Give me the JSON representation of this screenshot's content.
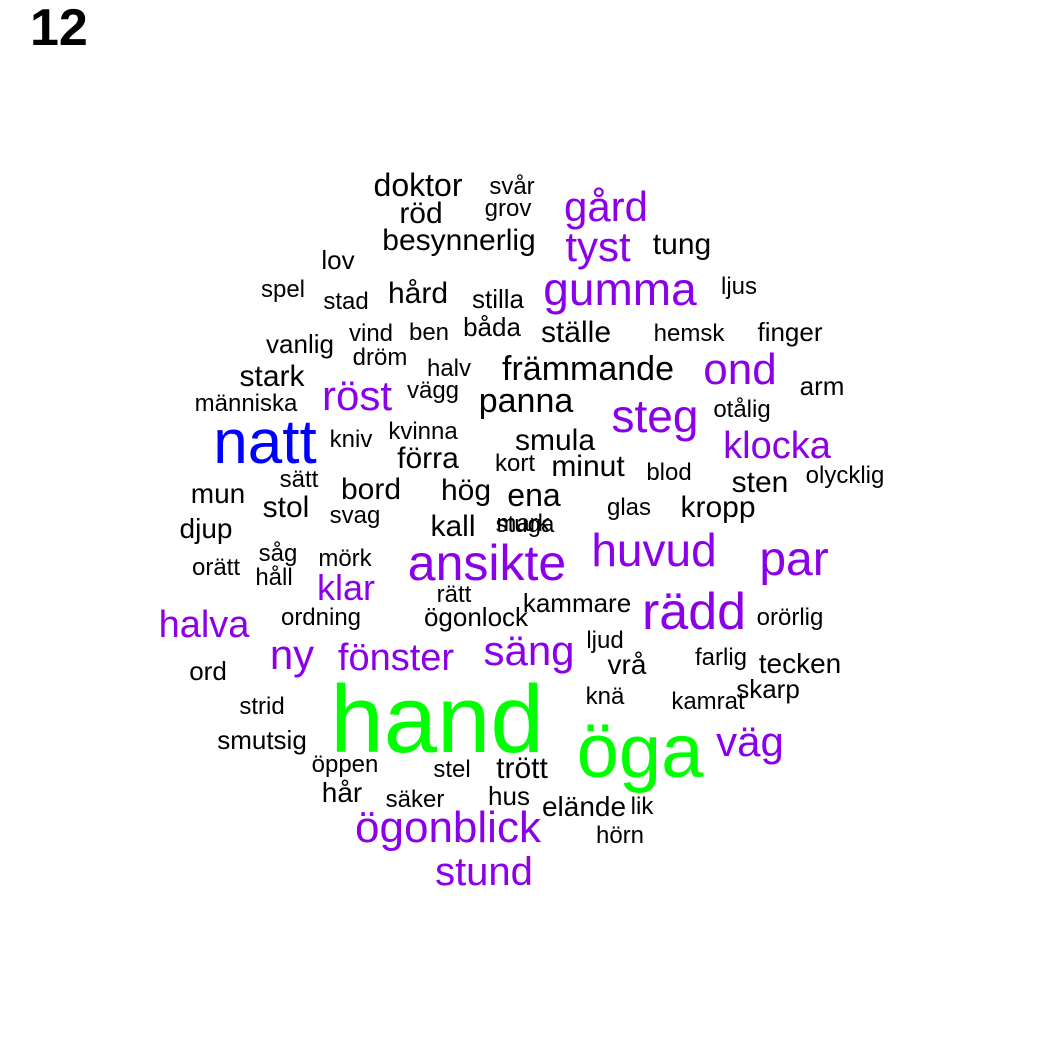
{
  "page_number": "12",
  "colors": {
    "level1": "#00ff00",
    "level2": "#0000ff",
    "level3": "#8b00e8",
    "level4": "#000000"
  },
  "words": [
    {
      "text": "hand",
      "level": 1
    },
    {
      "text": "öga",
      "level": 1
    },
    {
      "text": "natt",
      "level": 2
    },
    {
      "text": "ansikte",
      "level": 3
    },
    {
      "text": "huvud",
      "level": 3
    },
    {
      "text": "par",
      "level": 3
    },
    {
      "text": "rädd",
      "level": 3
    },
    {
      "text": "steg",
      "level": 3
    },
    {
      "text": "gumma",
      "level": 3
    },
    {
      "text": "gård",
      "level": 3
    },
    {
      "text": "tyst",
      "level": 3
    },
    {
      "text": "ond",
      "level": 3
    },
    {
      "text": "röst",
      "level": 3
    },
    {
      "text": "klocka",
      "level": 3
    },
    {
      "text": "klar",
      "level": 3
    },
    {
      "text": "halva",
      "level": 3
    },
    {
      "text": "ny",
      "level": 3
    },
    {
      "text": "fönster",
      "level": 3
    },
    {
      "text": "säng",
      "level": 3
    },
    {
      "text": "väg",
      "level": 3
    },
    {
      "text": "ögonblick",
      "level": 3
    },
    {
      "text": "stund",
      "level": 3
    },
    {
      "text": "doktor",
      "level": 4
    },
    {
      "text": "svår",
      "level": 4
    },
    {
      "text": "grov",
      "level": 4
    },
    {
      "text": "röd",
      "level": 4
    },
    {
      "text": "besynnerlig",
      "level": 4
    },
    {
      "text": "tung",
      "level": 4
    },
    {
      "text": "lov",
      "level": 4
    },
    {
      "text": "spel",
      "level": 4
    },
    {
      "text": "stad",
      "level": 4
    },
    {
      "text": "hård",
      "level": 4
    },
    {
      "text": "stilla",
      "level": 4
    },
    {
      "text": "ljus",
      "level": 4
    },
    {
      "text": "vanlig",
      "level": 4
    },
    {
      "text": "vind",
      "level": 4
    },
    {
      "text": "ben",
      "level": 4
    },
    {
      "text": "båda",
      "level": 4
    },
    {
      "text": "ställe",
      "level": 4
    },
    {
      "text": "hemsk",
      "level": 4
    },
    {
      "text": "finger",
      "level": 4
    },
    {
      "text": "dröm",
      "level": 4
    },
    {
      "text": "halv",
      "level": 4
    },
    {
      "text": "främmande",
      "level": 4
    },
    {
      "text": "stark",
      "level": 4
    },
    {
      "text": "vägg",
      "level": 4
    },
    {
      "text": "arm",
      "level": 4
    },
    {
      "text": "människa",
      "level": 4
    },
    {
      "text": "panna",
      "level": 4
    },
    {
      "text": "otålig",
      "level": 4
    },
    {
      "text": "kniv",
      "level": 4
    },
    {
      "text": "kvinna",
      "level": 4
    },
    {
      "text": "smula",
      "level": 4
    },
    {
      "text": "förra",
      "level": 4
    },
    {
      "text": "kort",
      "level": 4
    },
    {
      "text": "minut",
      "level": 4
    },
    {
      "text": "blod",
      "level": 4
    },
    {
      "text": "sätt",
      "level": 4
    },
    {
      "text": "olycklig",
      "level": 4
    },
    {
      "text": "mun",
      "level": 4
    },
    {
      "text": "bord",
      "level": 4
    },
    {
      "text": "hög",
      "level": 4
    },
    {
      "text": "ena",
      "level": 4
    },
    {
      "text": "sten",
      "level": 4
    },
    {
      "text": "stol",
      "level": 4
    },
    {
      "text": "svag",
      "level": 4
    },
    {
      "text": "glas",
      "level": 4
    },
    {
      "text": "kropp",
      "level": 4
    },
    {
      "text": "djup",
      "level": 4
    },
    {
      "text": "kall",
      "level": 4
    },
    {
      "text": "mark",
      "level": 4
    },
    {
      "text": "såg",
      "level": 4
    },
    {
      "text": "mörk",
      "level": 4
    },
    {
      "text": "orätt",
      "level": 4
    },
    {
      "text": "håll",
      "level": 4
    },
    {
      "text": "rätt",
      "level": 4
    },
    {
      "text": "kammare",
      "level": 4
    },
    {
      "text": "ordning",
      "level": 4
    },
    {
      "text": "ögonlock",
      "level": 4
    },
    {
      "text": "orörlig",
      "level": 4
    },
    {
      "text": "ljud",
      "level": 4
    },
    {
      "text": "vrå",
      "level": 4
    },
    {
      "text": "farlig",
      "level": 4
    },
    {
      "text": "tecken",
      "level": 4
    },
    {
      "text": "ord",
      "level": 4
    },
    {
      "text": "skarp",
      "level": 4
    },
    {
      "text": "knä",
      "level": 4
    },
    {
      "text": "kamrat",
      "level": 4
    },
    {
      "text": "strid",
      "level": 4
    },
    {
      "text": "smutsig",
      "level": 4
    },
    {
      "text": "öppen",
      "level": 4
    },
    {
      "text": "stel",
      "level": 4
    },
    {
      "text": "trött",
      "level": 4
    },
    {
      "text": "hår",
      "level": 4
    },
    {
      "text": "säker",
      "level": 4
    },
    {
      "text": "hus",
      "level": 4
    },
    {
      "text": "elände",
      "level": 4
    },
    {
      "text": "lik",
      "level": 4
    },
    {
      "text": "hörn",
      "level": 4
    },
    {
      "text": "stuga",
      "level": 4
    }
  ]
}
